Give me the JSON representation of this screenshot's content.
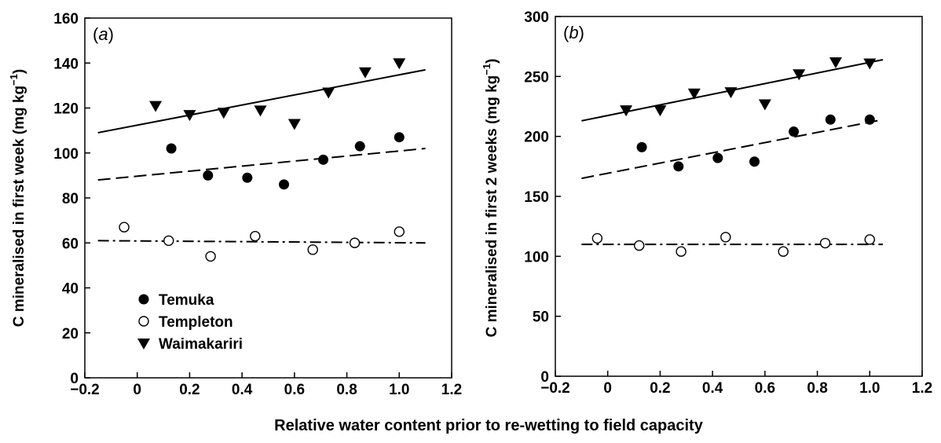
{
  "figure": {
    "xlabel": "Relative water content prior to re-wetting to field capacity"
  },
  "chart_data": [
    {
      "type": "scatter",
      "panel": "(a)",
      "panel_letter": "a",
      "ylabel_main": "C mineralised in first week (mg kg",
      "ylabel_sup": "−1",
      "ylabel_end": ")",
      "xlim": [
        -0.2,
        1.2
      ],
      "ylim": [
        0,
        160
      ],
      "xticks": [
        -0.2,
        0,
        0.2,
        0.4,
        0.6,
        0.8,
        1.0,
        1.2
      ],
      "xtick_labels": [
        "−0.2",
        "0",
        "0.2",
        "0.4",
        "0.6",
        "0.8",
        "1.0",
        "1.2"
      ],
      "yticks": [
        0,
        20,
        40,
        60,
        80,
        100,
        120,
        140,
        160
      ],
      "ytick_labels": [
        "0",
        "20",
        "40",
        "60",
        "80",
        "100",
        "120",
        "140",
        "160"
      ],
      "grid": false,
      "legend_position": "bottom-left",
      "series": [
        {
          "name": "Temuka",
          "marker": "filled-circle",
          "line": "dashed",
          "points": [
            [
              0.13,
              102
            ],
            [
              0.27,
              90
            ],
            [
              0.42,
              89
            ],
            [
              0.56,
              86
            ],
            [
              0.71,
              97
            ],
            [
              0.85,
              103
            ],
            [
              1.0,
              107
            ]
          ],
          "fit": [
            [
              -0.15,
              88
            ],
            [
              1.1,
              102
            ]
          ]
        },
        {
          "name": "Templeton",
          "marker": "open-circle",
          "line": "dash-dot",
          "points": [
            [
              -0.05,
              67
            ],
            [
              0.12,
              61
            ],
            [
              0.28,
              54
            ],
            [
              0.45,
              63
            ],
            [
              0.67,
              57
            ],
            [
              0.83,
              60
            ],
            [
              1.0,
              65
            ]
          ],
          "fit": [
            [
              -0.15,
              61
            ],
            [
              1.1,
              60
            ]
          ]
        },
        {
          "name": "Waimakariri",
          "marker": "filled-triangle-down",
          "line": "solid",
          "points": [
            [
              0.07,
              121
            ],
            [
              0.2,
              117
            ],
            [
              0.33,
              118
            ],
            [
              0.47,
              119
            ],
            [
              0.6,
              113
            ],
            [
              0.73,
              127
            ],
            [
              0.87,
              136
            ],
            [
              1.0,
              140
            ]
          ],
          "fit": [
            [
              -0.15,
              109
            ],
            [
              1.1,
              137
            ]
          ]
        }
      ]
    },
    {
      "type": "scatter",
      "panel": "(b)",
      "panel_letter": "b",
      "ylabel_main": "C mineralised in first 2 weeks (mg kg",
      "ylabel_sup": "−1",
      "ylabel_end": ")",
      "xlim": [
        -0.2,
        1.2
      ],
      "ylim": [
        0,
        300
      ],
      "xticks": [
        -0.2,
        0,
        0.2,
        0.4,
        0.6,
        0.8,
        1.0,
        1.2
      ],
      "xtick_labels": [
        "−0.2",
        "0",
        "0.2",
        "0.4",
        "0.6",
        "0.8",
        "1.0",
        "1.2"
      ],
      "yticks": [
        0,
        50,
        100,
        150,
        200,
        250,
        300
      ],
      "ytick_labels": [
        "0",
        "50",
        "100",
        "150",
        "200",
        "250",
        "300"
      ],
      "grid": false,
      "series": [
        {
          "name": "Temuka",
          "marker": "filled-circle",
          "line": "dashed",
          "points": [
            [
              0.13,
              191
            ],
            [
              0.27,
              175
            ],
            [
              0.42,
              182
            ],
            [
              0.56,
              179
            ],
            [
              0.71,
              204
            ],
            [
              0.85,
              214
            ],
            [
              1.0,
              214
            ]
          ],
          "fit": [
            [
              -0.1,
              165
            ],
            [
              1.05,
              214
            ]
          ]
        },
        {
          "name": "Templeton",
          "marker": "open-circle",
          "line": "dash-dot",
          "points": [
            [
              -0.04,
              115
            ],
            [
              0.12,
              109
            ],
            [
              0.28,
              104
            ],
            [
              0.45,
              116
            ],
            [
              0.67,
              104
            ],
            [
              0.83,
              111
            ],
            [
              1.0,
              114
            ]
          ],
          "fit": [
            [
              -0.1,
              110
            ],
            [
              1.05,
              110
            ]
          ]
        },
        {
          "name": "Waimakariri",
          "marker": "filled-triangle-down",
          "line": "solid",
          "points": [
            [
              0.07,
              222
            ],
            [
              0.2,
              222
            ],
            [
              0.33,
              236
            ],
            [
              0.47,
              237
            ],
            [
              0.6,
              227
            ],
            [
              0.73,
              252
            ],
            [
              0.87,
              262
            ],
            [
              1.0,
              261
            ]
          ],
          "fit": [
            [
              -0.1,
              213
            ],
            [
              1.05,
              264
            ]
          ]
        }
      ]
    }
  ]
}
